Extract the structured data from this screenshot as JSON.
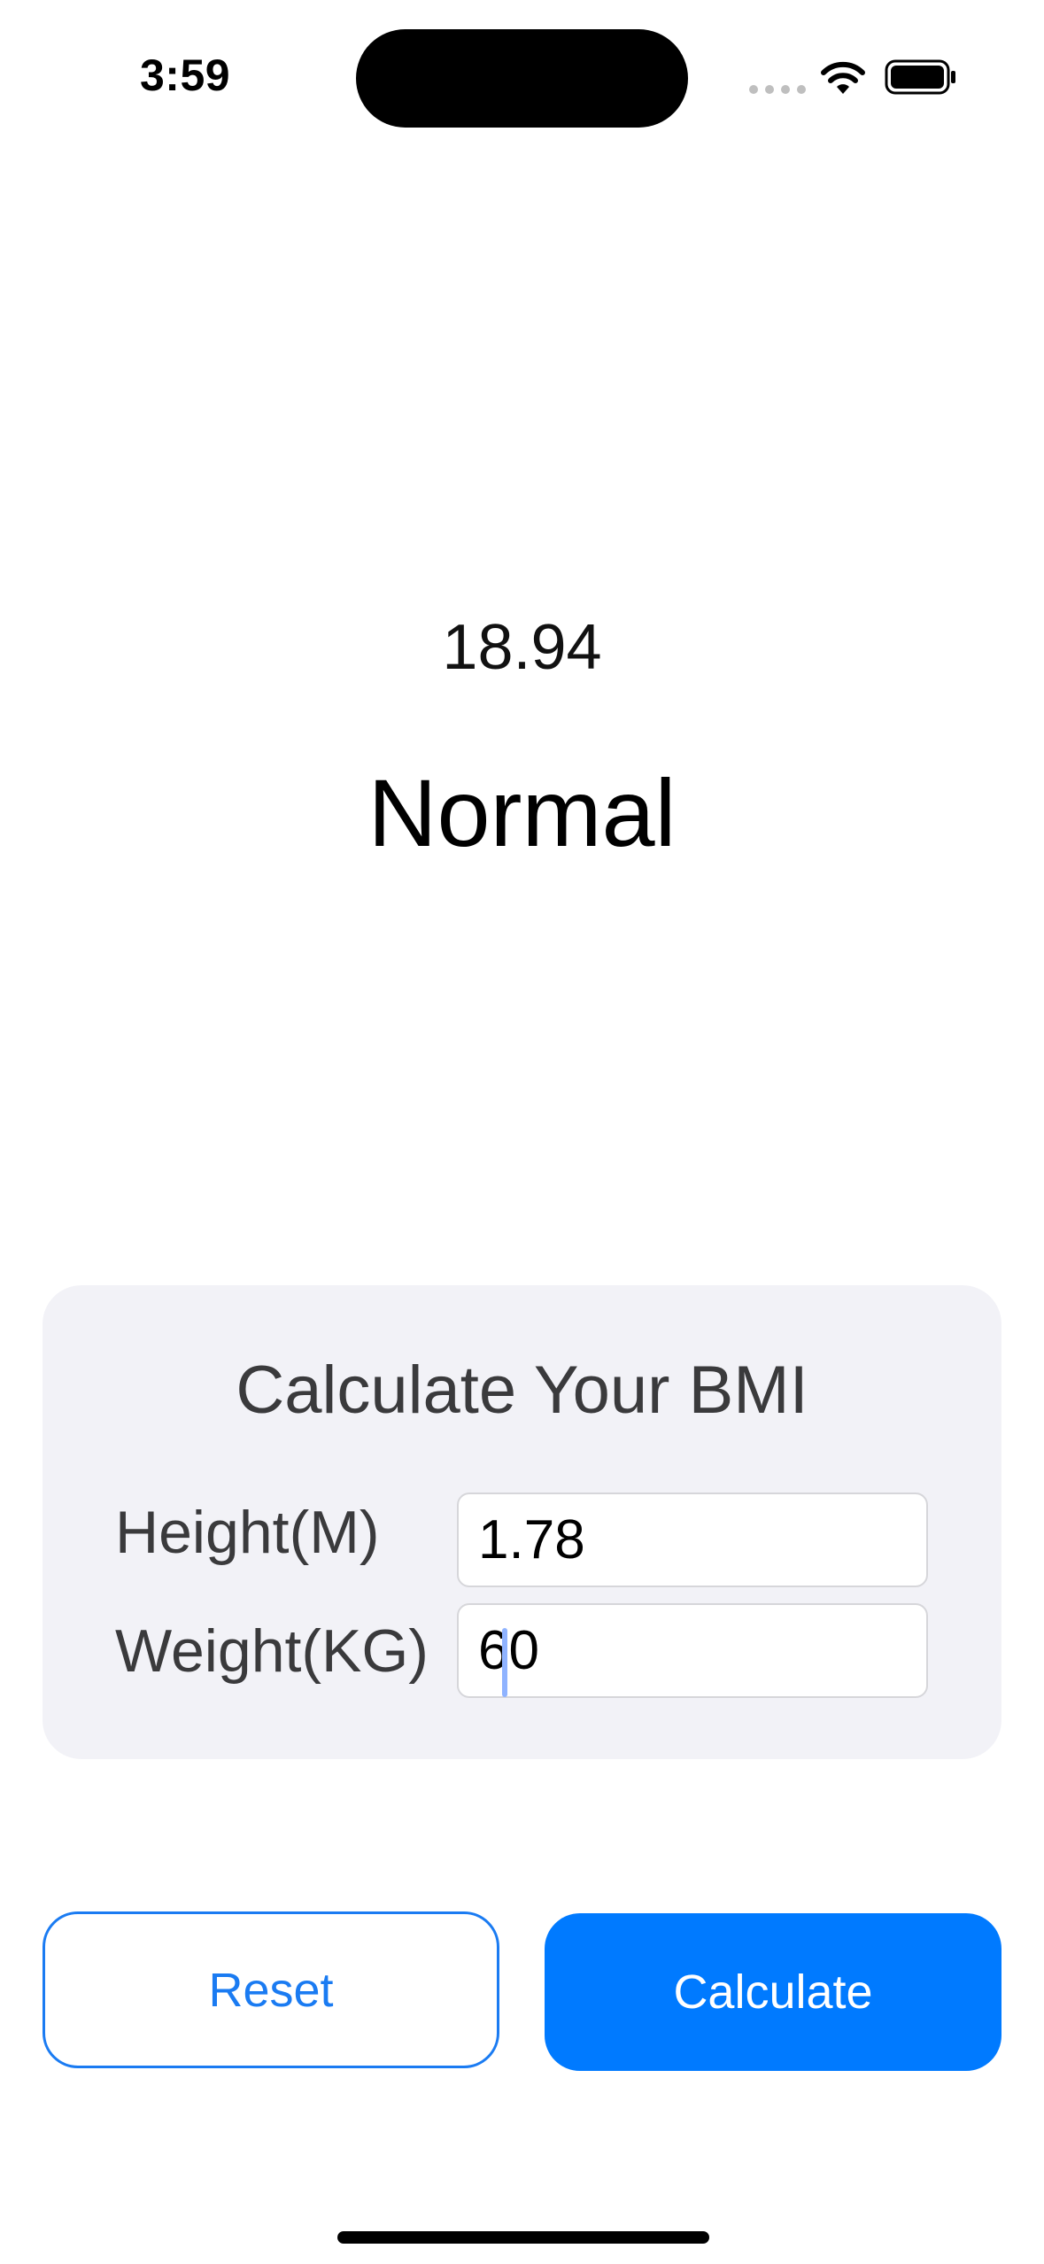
{
  "status_bar": {
    "time": "3:59"
  },
  "result": {
    "bmi_value": "18.94",
    "category": "Normal"
  },
  "form": {
    "title": "Calculate Your BMI",
    "height_label": "Height(M)",
    "height_value": "1.78",
    "weight_label": "Weight(KG)",
    "weight_value": "60"
  },
  "buttons": {
    "reset_label": "Reset",
    "calculate_label": "Calculate"
  },
  "colors": {
    "accent": "#007aff",
    "card_background": "#f2f2f7"
  },
  "icons": {
    "signal": "cellular-signal-icon",
    "wifi": "wifi-icon",
    "battery": "battery-icon"
  }
}
